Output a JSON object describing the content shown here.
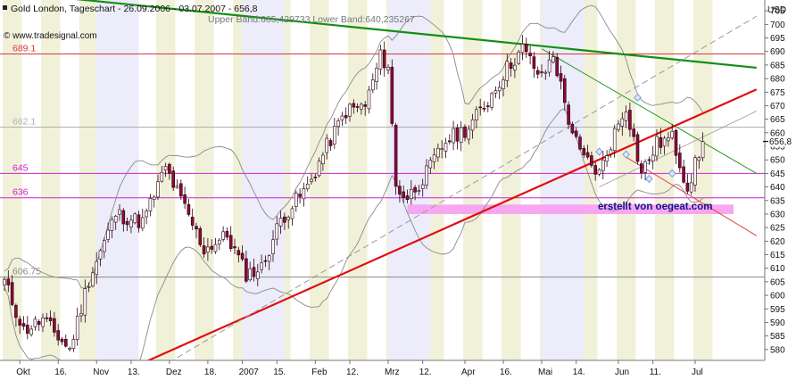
{
  "header": {
    "title": "Gold London, Tageschart - 26.09.2006 - 03.07.2007 - 656,8",
    "bands": "Upper Band:665,429733 Lower Band:640,235267",
    "source": "© www.tradesignal.com",
    "currency": "USD",
    "watermark": "erstellt von oegeat.com"
  },
  "colors": {
    "background": "#ffffff",
    "stripe": "#f1f1d9",
    "month_band": "#ececfb",
    "up_candle": "#ffffff",
    "down_candle": "#8b0a36",
    "candle_outline": "#2a0010",
    "bollinger": "#8a8a8a",
    "resistance_thick": "#128f12",
    "resistance_thin": "#2b9a2b",
    "support_thick": "#e01010",
    "support_thin": "#e84040",
    "dashed_channel": "#9a9a9a",
    "support_zone": "#f7a6f1",
    "line_689": "#d43a3a",
    "line_645": "#cc22cc",
    "line_636": "#cc22cc",
    "line_662": "#b0b0b0",
    "line_606": "#8a8a8a",
    "marker": "#7a9ad6",
    "watermark": "#16168a"
  },
  "chart_data": {
    "type": "candlestick",
    "title": "Gold London, Tageschart - 26.09.2006 - 03.07.2007 - 656,8",
    "ylabel": "USD",
    "ylim": [
      576,
      709
    ],
    "y_ticks": [
      580,
      585,
      590,
      595,
      600,
      605,
      610,
      615,
      620,
      625,
      630,
      635,
      640,
      645,
      650,
      655,
      660,
      665,
      670,
      675,
      680,
      685,
      690,
      695,
      700,
      705
    ],
    "x_ticks": [
      {
        "label": "Okt",
        "index": 4
      },
      {
        "label": "16.",
        "index": 14
      },
      {
        "label": "Nov",
        "index": 24
      },
      {
        "label": "13.",
        "index": 33
      },
      {
        "label": "Dez",
        "index": 43
      },
      {
        "label": "18.",
        "index": 53
      },
      {
        "label": "2007",
        "index": 62
      },
      {
        "label": "15.",
        "index": 71
      },
      {
        "label": "Feb",
        "index": 81
      },
      {
        "label": "12.",
        "index": 90
      },
      {
        "label": "Mrz",
        "index": 100
      },
      {
        "label": "12.",
        "index": 109
      },
      {
        "label": "Apr",
        "index": 120
      },
      {
        "label": "16.",
        "index": 130
      },
      {
        "label": "Mai",
        "index": 140
      },
      {
        "label": "14.",
        "index": 149
      },
      {
        "label": "Jun",
        "index": 160
      },
      {
        "label": "11.",
        "index": 169
      },
      {
        "label": "Jul",
        "index": 180
      }
    ],
    "last_price": {
      "value": 656.8,
      "label": "656,8"
    },
    "horizontal_lines": [
      {
        "label": "689.1",
        "value": 689.1,
        "color": "#d43a3a"
      },
      {
        "label": "662.1",
        "value": 662.1,
        "color": "#b0b0b0"
      },
      {
        "label": "645",
        "value": 645,
        "color": "#cc22cc"
      },
      {
        "label": "636",
        "value": 636,
        "color": "#cc22cc"
      },
      {
        "label": "606.75",
        "value": 606.75,
        "color": "#8a8a8a"
      }
    ],
    "zones": [
      {
        "from_index": 105,
        "to_index": 190,
        "low": 630,
        "high": 633.5
      }
    ],
    "trendlines": [
      {
        "name": "resistance_long",
        "x1": 0,
        "y1": 712,
        "x2": 196,
        "y2": 684,
        "width": 2.2,
        "dash": ""
      },
      {
        "name": "resistance_short",
        "x1": 140,
        "y1": 691,
        "x2": 196,
        "y2": 645,
        "width": 1,
        "dash": ""
      },
      {
        "name": "support_long",
        "x1": 36,
        "y1": 575,
        "x2": 196,
        "y2": 676,
        "width": 2.2,
        "dash": ""
      },
      {
        "name": "support_short",
        "x1": 162,
        "y1": 651,
        "x2": 196,
        "y2": 622,
        "width": 1,
        "dash": ""
      },
      {
        "name": "channel_dashed",
        "x1": 45,
        "y1": 577,
        "x2": 196,
        "y2": 703,
        "width": 1,
        "dash": "7,4"
      },
      {
        "name": "channel_thin",
        "x1": 155,
        "y1": 640,
        "x2": 196,
        "y2": 668,
        "width": 0.8,
        "dash": ""
      }
    ],
    "anchors": [
      {
        "index": 0,
        "value": 605
      },
      {
        "index": 5,
        "value": 587
      },
      {
        "index": 10,
        "value": 591
      },
      {
        "index": 17,
        "value": 580
      },
      {
        "index": 22,
        "value": 606
      },
      {
        "index": 29,
        "value": 630
      },
      {
        "index": 36,
        "value": 627
      },
      {
        "index": 42,
        "value": 647
      },
      {
        "index": 47,
        "value": 632
      },
      {
        "index": 52,
        "value": 617
      },
      {
        "index": 58,
        "value": 622
      },
      {
        "index": 63,
        "value": 608
      },
      {
        "index": 67,
        "value": 610
      },
      {
        "index": 72,
        "value": 628
      },
      {
        "index": 79,
        "value": 640
      },
      {
        "index": 84,
        "value": 655
      },
      {
        "index": 89,
        "value": 668
      },
      {
        "index": 94,
        "value": 670
      },
      {
        "index": 98,
        "value": 688
      },
      {
        "index": 100,
        "value": 685
      },
      {
        "index": 102,
        "value": 640
      },
      {
        "index": 105,
        "value": 636
      },
      {
        "index": 110,
        "value": 645
      },
      {
        "index": 115,
        "value": 657
      },
      {
        "index": 121,
        "value": 662
      },
      {
        "index": 126,
        "value": 672
      },
      {
        "index": 131,
        "value": 684
      },
      {
        "index": 135,
        "value": 691
      },
      {
        "index": 140,
        "value": 680
      },
      {
        "index": 143,
        "value": 689
      },
      {
        "index": 147,
        "value": 665
      },
      {
        "index": 150,
        "value": 652
      },
      {
        "index": 155,
        "value": 645
      },
      {
        "index": 159,
        "value": 660
      },
      {
        "index": 162,
        "value": 670
      },
      {
        "index": 166,
        "value": 645
      },
      {
        "index": 170,
        "value": 656
      },
      {
        "index": 174,
        "value": 658
      },
      {
        "index": 178,
        "value": 640
      },
      {
        "index": 180,
        "value": 648
      },
      {
        "index": 182,
        "value": 656.8
      }
    ],
    "band_width": 12,
    "markers": [
      {
        "index": 155,
        "value": 653
      },
      {
        "index": 162,
        "value": 652
      },
      {
        "index": 165,
        "value": 673
      },
      {
        "index": 168,
        "value": 643
      },
      {
        "index": 174,
        "value": 645
      }
    ]
  }
}
